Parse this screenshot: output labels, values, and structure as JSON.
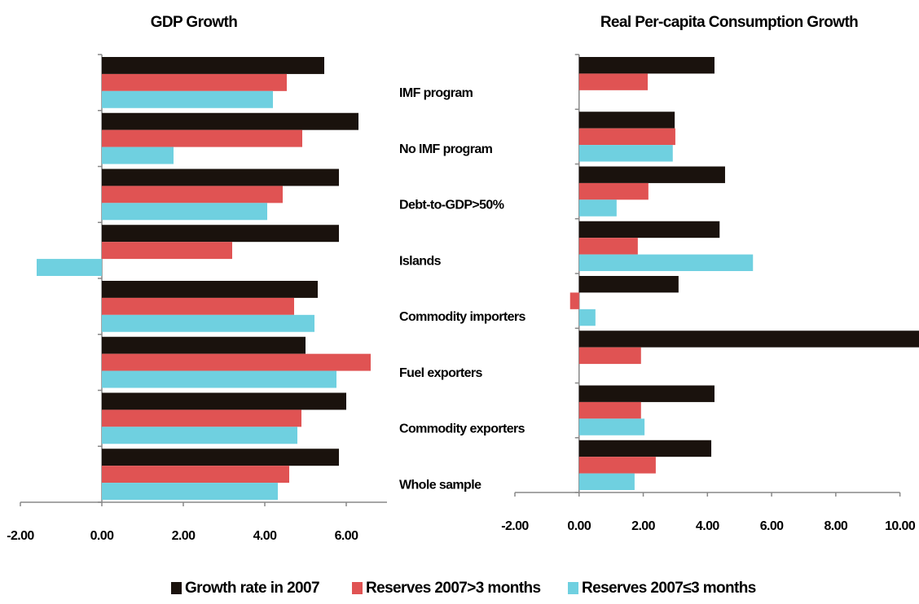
{
  "chart_data": [
    {
      "type": "bar",
      "orientation": "horizontal",
      "title": "GDP Growth",
      "categories": [
        "IMF program",
        "No IMF program",
        "Debt-to-GDP>50%",
        "Islands",
        "Commodity importers",
        "Fuel exporters",
        "Commodity exporters",
        "Whole sample"
      ],
      "series": [
        {
          "name": "Growth rate in 2007",
          "color": "#1a120d",
          "values": [
            5.46,
            6.3,
            5.82,
            5.82,
            5.3,
            5.0,
            6.0,
            5.82
          ]
        },
        {
          "name": "Reserves 2007>3 months",
          "color": "#e05353",
          "values": [
            4.54,
            4.92,
            4.44,
            3.2,
            4.72,
            6.6,
            4.9,
            4.6
          ]
        },
        {
          "name": "Reserves 2007≤3 months",
          "color": "#6fd0e0",
          "values": [
            4.2,
            1.76,
            4.06,
            -1.6,
            5.22,
            5.76,
            4.8,
            4.32
          ]
        }
      ],
      "xlim": [
        -2,
        7
      ],
      "xticks": [
        {
          "value": -2,
          "label": "-2.00"
        },
        {
          "value": 0,
          "label": "0.00"
        },
        {
          "value": 2,
          "label": "2.00"
        },
        {
          "value": 4,
          "label": "4.00"
        },
        {
          "value": 6,
          "label": "6.00"
        }
      ]
    },
    {
      "type": "bar",
      "orientation": "horizontal",
      "title": "Real Per-capita Consumption Growth",
      "series": [
        {
          "color": "#1a120d",
          "values": [
            4.22,
            2.98,
            4.55,
            4.38,
            3.1,
            10.87,
            4.22,
            4.12
          ]
        },
        {
          "color": "#e05353",
          "values": [
            2.14,
            3.0,
            2.16,
            1.83,
            -0.28,
            1.93,
            1.93,
            2.39
          ]
        },
        {
          "color": "#6fd0e0",
          "values": [
            null,
            2.92,
            1.17,
            5.42,
            0.51,
            null,
            2.04,
            1.73
          ]
        }
      ],
      "xlim": [
        -2,
        11
      ],
      "xticks": [
        {
          "value": -2,
          "label": "-2.00"
        },
        {
          "value": 0,
          "label": "0.00"
        },
        {
          "value": 2,
          "label": "2.00"
        },
        {
          "value": 4,
          "label": "4.00"
        },
        {
          "value": 6,
          "label": "6.00"
        },
        {
          "value": 8,
          "label": "8.00"
        },
        {
          "value": 10,
          "label": "10.00"
        }
      ]
    }
  ]
}
